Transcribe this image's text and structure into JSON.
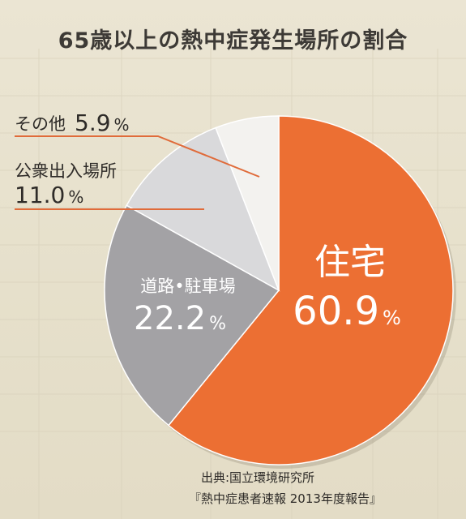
{
  "title": "65歳以上の熱中症発生場所の割合",
  "colors": {
    "home": "#ec6f33",
    "road": "#a3a2a5",
    "public": "#d9d9db",
    "other": "#f3f2ef",
    "leader": "#e06b3a",
    "background": "#e8e2cf"
  },
  "chart_data": {
    "type": "pie",
    "title": "65歳以上の熱中症発生場所の割合",
    "slices": [
      {
        "label": "住宅",
        "value": 60.9,
        "value_text": "60.9",
        "unit": "%",
        "color": "#ec6f33"
      },
      {
        "label": "道路•駐車場",
        "value": 22.2,
        "value_text": "22.2",
        "unit": "%",
        "color": "#a3a2a5"
      },
      {
        "label": "公衆出入場所",
        "value": 11.0,
        "value_text": "11.0",
        "unit": "%",
        "color": "#d9d9db"
      },
      {
        "label": "その他",
        "value": 5.9,
        "value_text": "5.9",
        "unit": "%",
        "color": "#f3f2ef"
      }
    ],
    "start_position": "12 o'clock, clockwise"
  },
  "source": {
    "line1": "出典:国立環境研究所",
    "line2": "『熱中症患者速報 2013年度報告』"
  }
}
